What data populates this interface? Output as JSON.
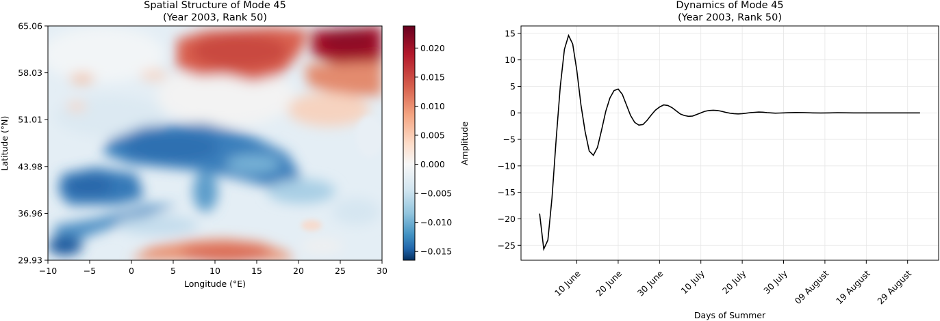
{
  "chart_data": [
    {
      "type": "heatmap",
      "title": "Spatial Structure of Mode 45",
      "subtitle": "(Year 2003, Rank 50)",
      "xlabel": "Longitude (°E)",
      "ylabel": "Latitude (°N)",
      "xlim": [
        -10,
        30
      ],
      "ylim": [
        29.93,
        65.06
      ],
      "xticks": [
        "−10",
        "−5",
        "0",
        "5",
        "10",
        "15",
        "20",
        "25",
        "30"
      ],
      "yticks": [
        "65.06",
        "58.03",
        "51.01",
        "43.98",
        "36.96",
        "29.93"
      ],
      "colormap": "RdBu_r",
      "colors": {
        "low": "#053061",
        "mid": "#f7f7f7",
        "high": "#67001f"
      },
      "colorbar": {
        "label": "Amplitude",
        "range": [
          -0.0165,
          0.0238
        ],
        "ticks": [
          "0.020",
          "0.015",
          "0.010",
          "0.005",
          "0.000",
          "−0.005",
          "−0.010",
          "−0.015"
        ],
        "tick_values": [
          0.02,
          0.015,
          0.01,
          0.005,
          0.0,
          -0.005,
          -0.01,
          -0.015
        ]
      }
    },
    {
      "type": "line",
      "title": "Dynamics of Mode 45",
      "subtitle": "(Year 2003, Rank 50)",
      "xlabel": "Days of Summer",
      "ylabel": "",
      "grid": true,
      "xlim": [
        -4.5,
        96.5
      ],
      "ylim": [
        -27.8,
        16.4
      ],
      "xticks": [
        {
          "label": "10 June",
          "value": 9
        },
        {
          "label": "20 June",
          "value": 19
        },
        {
          "label": "30 June",
          "value": 29
        },
        {
          "label": "10 July",
          "value": 39
        },
        {
          "label": "20 July",
          "value": 49
        },
        {
          "label": "30 July",
          "value": 59
        },
        {
          "label": "09 August",
          "value": 69
        },
        {
          "label": "19 August",
          "value": 79
        },
        {
          "label": "29 August",
          "value": 89
        }
      ],
      "yticks": [
        15,
        10,
        5,
        0,
        -5,
        -10,
        -15,
        -20,
        -25
      ],
      "series": [
        {
          "color": "#000000",
          "x": [
            0,
            1,
            2,
            3,
            4,
            5,
            6,
            7,
            8,
            9,
            10,
            11,
            12,
            13,
            14,
            15,
            16,
            17,
            18,
            19,
            20,
            21,
            22,
            23,
            24,
            25,
            26,
            27,
            28,
            29,
            30,
            31,
            32,
            33,
            34,
            35,
            36,
            37,
            38,
            39,
            40,
            41,
            42,
            43,
            44,
            45,
            46,
            47,
            48,
            49,
            50,
            51,
            52,
            53,
            54,
            55,
            56,
            57,
            58,
            59,
            60,
            62,
            64,
            66,
            68,
            70,
            72,
            74,
            76,
            78,
            80,
            82,
            84,
            86,
            88,
            90,
            92
          ],
          "y": [
            -19.0,
            -25.7,
            -24.0,
            -16.0,
            -5.0,
            5.0,
            12.0,
            14.6,
            13.0,
            8.0,
            1.5,
            -3.5,
            -7.2,
            -8.0,
            -6.5,
            -3.2,
            0.3,
            2.8,
            4.2,
            4.5,
            3.5,
            1.5,
            -0.5,
            -1.8,
            -2.3,
            -2.2,
            -1.4,
            -0.4,
            0.5,
            1.1,
            1.5,
            1.4,
            1.0,
            0.4,
            -0.2,
            -0.5,
            -0.65,
            -0.6,
            -0.3,
            0.0,
            0.3,
            0.45,
            0.5,
            0.45,
            0.3,
            0.1,
            -0.05,
            -0.15,
            -0.2,
            -0.15,
            -0.05,
            0.05,
            0.1,
            0.15,
            0.12,
            0.05,
            0.0,
            -0.05,
            -0.03,
            0.0,
            0.02,
            0.06,
            0.05,
            0.0,
            -0.02,
            0.0,
            0.02,
            0.01,
            0.0,
            0.0,
            0.0,
            0.0,
            0.0,
            0.0,
            0.0,
            0.0,
            0.0
          ]
        }
      ]
    }
  ]
}
